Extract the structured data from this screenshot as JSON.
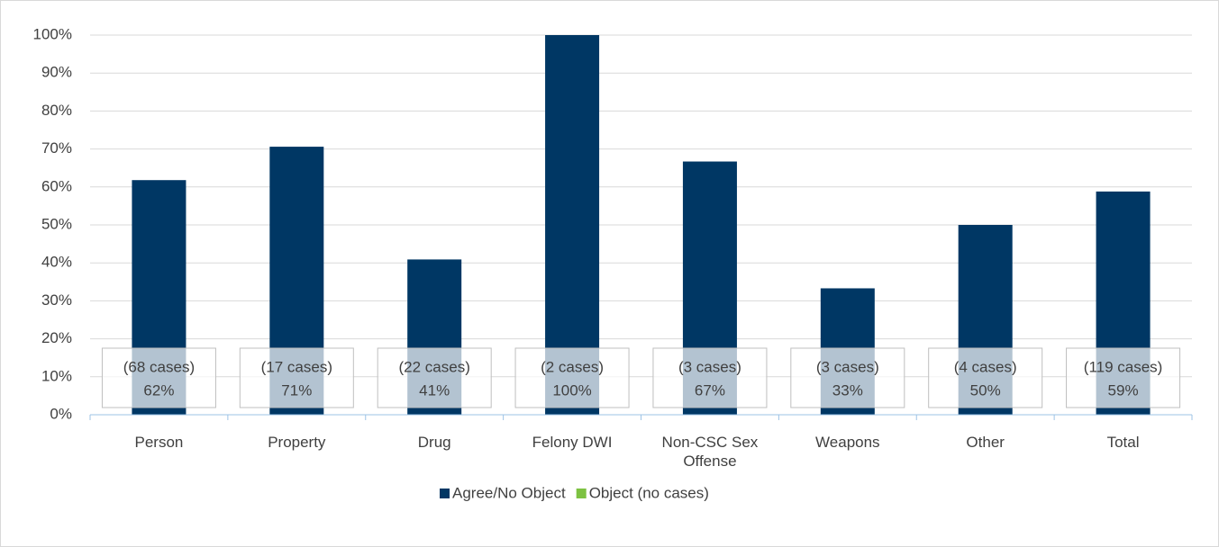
{
  "chart_data": {
    "type": "bar",
    "categories": [
      "Person",
      "Property",
      "Drug",
      "Felony DWI",
      "Non-CSC Sex Offense",
      "Weapons",
      "Other",
      "Total"
    ],
    "series": [
      {
        "name": "Agree/No Object",
        "color": "#003764",
        "values": [
          61.8,
          70.6,
          40.9,
          100,
          66.7,
          33.3,
          50,
          58.8
        ],
        "value_labels": [
          "62%",
          "71%",
          "41%",
          "100%",
          "67%",
          "33%",
          "50%",
          "59%"
        ],
        "case_labels": [
          "(68 cases)",
          "(17 cases)",
          "(22 cases)",
          "(2 cases)",
          "(3 cases)",
          "(3 cases)",
          "(4 cases)",
          "(119 cases)"
        ]
      },
      {
        "name": "Object (no cases)",
        "color": "#7dc242",
        "values": [
          0,
          0,
          0,
          0,
          0,
          0,
          0,
          0
        ]
      }
    ],
    "ylim": [
      0,
      100
    ],
    "yticks": [
      {
        "value": 0,
        "label": "0%"
      },
      {
        "value": 10,
        "label": "10%"
      },
      {
        "value": 20,
        "label": "20%"
      },
      {
        "value": 30,
        "label": "30%"
      },
      {
        "value": 40,
        "label": "40%"
      },
      {
        "value": 50,
        "label": "50%"
      },
      {
        "value": 60,
        "label": "60%"
      },
      {
        "value": 70,
        "label": "70%"
      },
      {
        "value": 80,
        "label": "80%"
      },
      {
        "value": 90,
        "label": "90%"
      },
      {
        "value": 100,
        "label": "100%"
      }
    ],
    "grid": true,
    "legend": "bottom"
  }
}
